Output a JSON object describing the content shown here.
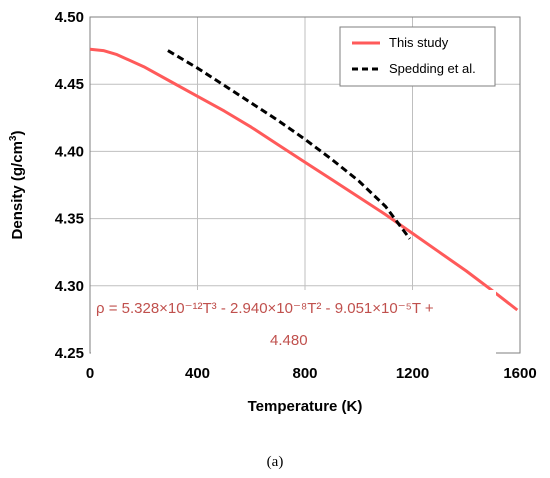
{
  "chart_data": {
    "type": "line",
    "xlabel": "Temperature (K)",
    "ylabel_main": "Density (g/cm",
    "ylabel_sup": "3",
    "ylabel_end": ")",
    "xlim": [
      0,
      1600
    ],
    "ylim": [
      4.25,
      4.5
    ],
    "x_ticks": [
      "0",
      "400",
      "800",
      "1200",
      "1600"
    ],
    "y_ticks": [
      "4.25",
      "4.30",
      "4.35",
      "4.40",
      "4.45",
      "4.50"
    ],
    "grid": true,
    "legend_position": "top-right",
    "series": [
      {
        "name": "This study",
        "color": "#ff5a5a",
        "style": "solid",
        "x": [
          0,
          50,
          100,
          200,
          300,
          400,
          500,
          600,
          700,
          800,
          900,
          1000,
          1100,
          1200,
          1300,
          1400,
          1500,
          1590
        ],
        "y": [
          4.476,
          4.475,
          4.472,
          4.463,
          4.452,
          4.441,
          4.43,
          4.418,
          4.405,
          4.392,
          4.379,
          4.366,
          4.353,
          4.339,
          4.325,
          4.311,
          4.296,
          4.282
        ]
      },
      {
        "name": "Spedding et al.",
        "color": "#000000",
        "style": "dashed",
        "x": [
          290,
          400,
          500,
          600,
          700,
          800,
          900,
          1000,
          1100,
          1190
        ],
        "y": [
          4.475,
          4.462,
          4.449,
          4.436,
          4.423,
          4.409,
          4.394,
          4.378,
          4.359,
          4.335
        ]
      }
    ],
    "equation": {
      "line1": "ρ = 5.328×10⁻¹²T³ - 2.940×10⁻⁸T² - 9.051×10⁻⁵T +",
      "line2": "4.480"
    }
  },
  "caption": "(a)"
}
